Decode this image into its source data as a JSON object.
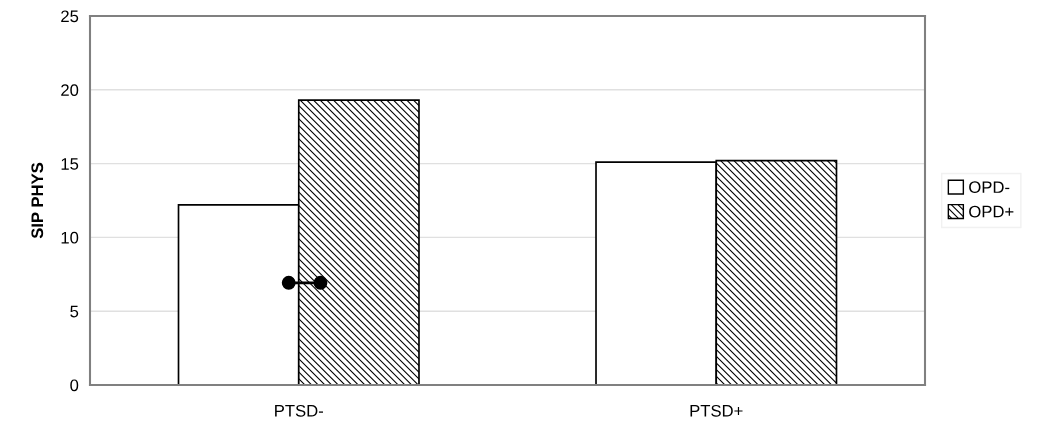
{
  "chart_data": {
    "type": "bar",
    "ylabel": "SIP PHYS",
    "categories": [
      "PTSD-",
      "PTSD+"
    ],
    "series": [
      {
        "name": "OPD-",
        "color": "#ffffff",
        "values": [
          12.2,
          15.1
        ]
      },
      {
        "name": "OPD+",
        "color": "#000000",
        "values": [
          19.3,
          15.2
        ]
      }
    ],
    "ylim": [
      0,
      25
    ],
    "yticks": [
      0,
      5,
      10,
      15,
      20,
      25
    ],
    "grid": "y",
    "legend": "right"
  }
}
